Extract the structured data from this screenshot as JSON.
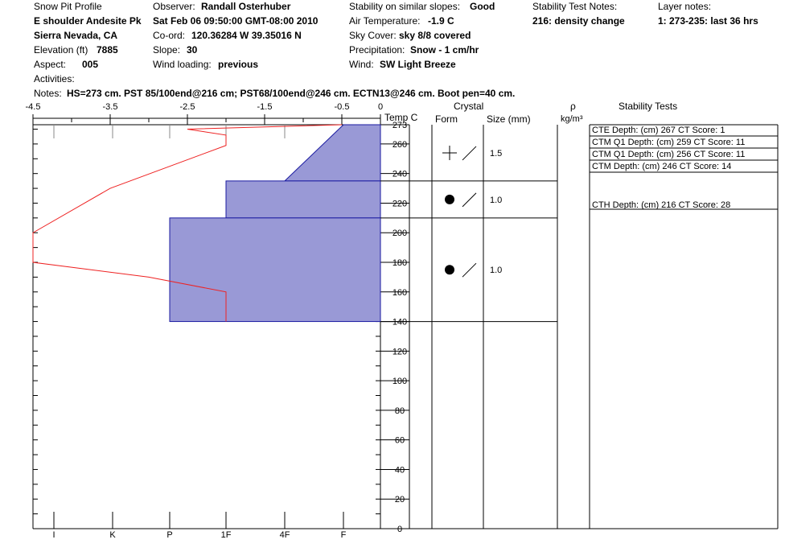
{
  "header": {
    "col1": {
      "title": "Snow Pit Profile",
      "location": "E shoulder Andesite Pk",
      "region": "Sierra Nevada, CA",
      "elevation_label": "Elevation (ft)",
      "elevation_value": "7885",
      "aspect_label": "Aspect:",
      "aspect_value": "005"
    },
    "col2": {
      "observer_label": "Observer:",
      "observer_value": "Randall Osterhuber",
      "datetime": "Sat Feb 06 09:50:00 GMT-08:00 2010",
      "coord_label": "Co-ord:",
      "coord_value": "120.36284 W 39.35016 N",
      "slope_label": "Slope:",
      "slope_value": "30",
      "wind_loading_label": "Wind loading:",
      "wind_loading_value": "previous"
    },
    "col3": {
      "stability_label": "Stability on similar slopes:",
      "stability_value": "Good",
      "air_temp_label": "Air Temperature:",
      "air_temp_value": "-1.9 C",
      "sky_label": "Sky Cover:",
      "sky_value": "sky 8/8 covered",
      "precip_label": "Precipitation:",
      "precip_value": "Snow - 1 cm/hr",
      "wind_label": "Wind:",
      "wind_value": "SW Light Breeze"
    },
    "col4": {
      "test_notes_label": "Stability Test Notes:",
      "test_notes_value": "216: density change"
    },
    "col5": {
      "layer_notes_label": "Layer notes:",
      "layer_notes_value": "1: 273-235: last 36 hrs"
    },
    "activities_label": "Activities:",
    "notes_label": "Notes:",
    "notes_value": "HS=273 cm. PST 85/100end@216 cm; PST68/100end@246 cm. ECTN13@246 cm. Boot pen=40 cm."
  },
  "table_headers": {
    "temp": "Temp C",
    "crystal": "Crystal",
    "form": "Form",
    "size": "Size (mm)",
    "rho": "ρ",
    "density_unit": "kg/m³",
    "stability_tests": "Stability Tests"
  },
  "chart_data": {
    "type": "line",
    "x_temp": {
      "ticks": [
        -4.5,
        -3.5,
        -2.5,
        -1.5,
        -0.5,
        0
      ],
      "tick_labels": [
        "-4.5",
        "-3.5",
        "-2.5",
        "-1.5",
        "-0.5",
        "0"
      ],
      "range": [
        -4.5,
        0
      ]
    },
    "y_depth": {
      "ticks": [
        0,
        20,
        40,
        60,
        80,
        100,
        120,
        140,
        160,
        180,
        200,
        220,
        240,
        260,
        273
      ],
      "tick_labels": [
        "0",
        "20",
        "40",
        "60",
        "80",
        "100",
        "120",
        "140",
        "160",
        "180",
        "200",
        "220",
        "240",
        "260",
        "273"
      ],
      "range": [
        0,
        273
      ]
    },
    "hardness_labels": [
      "I",
      "K",
      "P",
      "1F",
      "4F",
      "F"
    ],
    "temperature_profile": [
      {
        "depth": 273,
        "temp": -0.5
      },
      {
        "depth": 270,
        "temp": -2.5
      },
      {
        "depth": 266,
        "temp": -2.0
      },
      {
        "depth": 259,
        "temp": -2.0
      },
      {
        "depth": 230,
        "temp": -3.5
      },
      {
        "depth": 200,
        "temp": -4.5
      },
      {
        "depth": 180,
        "temp": -4.5
      },
      {
        "depth": 170,
        "temp": -3.0
      },
      {
        "depth": 160,
        "temp": -2.0
      },
      {
        "depth": 140,
        "temp": -2.0
      }
    ],
    "hardness_layers": [
      {
        "top": 273,
        "bottom": 235,
        "hardness_top": "F",
        "hardness_bottom": "4F"
      },
      {
        "top": 235,
        "bottom": 210,
        "hardness": "1F"
      },
      {
        "top": 210,
        "bottom": 140,
        "hardness": "P"
      }
    ]
  },
  "crystal_layers": [
    {
      "top": 273,
      "bottom": 235,
      "form": "plus-slash",
      "size": "1.5"
    },
    {
      "top": 235,
      "bottom": 210,
      "form": "dot-slash",
      "size": "1.0"
    },
    {
      "top": 210,
      "bottom": 140,
      "form": "dot-slash",
      "size": "1.0"
    }
  ],
  "stability_tests": [
    {
      "text": "CTE   Depth: (cm) 267 CT Score: 1",
      "depth": 267
    },
    {
      "text": "CTM Q1 Depth: (cm) 259 CT Score: 11",
      "depth": 259
    },
    {
      "text": "CTM Q1 Depth: (cm) 256 CT Score: 11",
      "depth": 256
    },
    {
      "text": "CTM   Depth: (cm) 246 CT Score: 14",
      "depth": 246
    },
    {
      "text": "CTH   Depth: (cm) 216 CT Score: 28",
      "depth": 216
    }
  ],
  "colors": {
    "temperature_line": "#ee2222",
    "hardness_fill": "#9999d6",
    "hardness_stroke": "#1a1aa0"
  }
}
